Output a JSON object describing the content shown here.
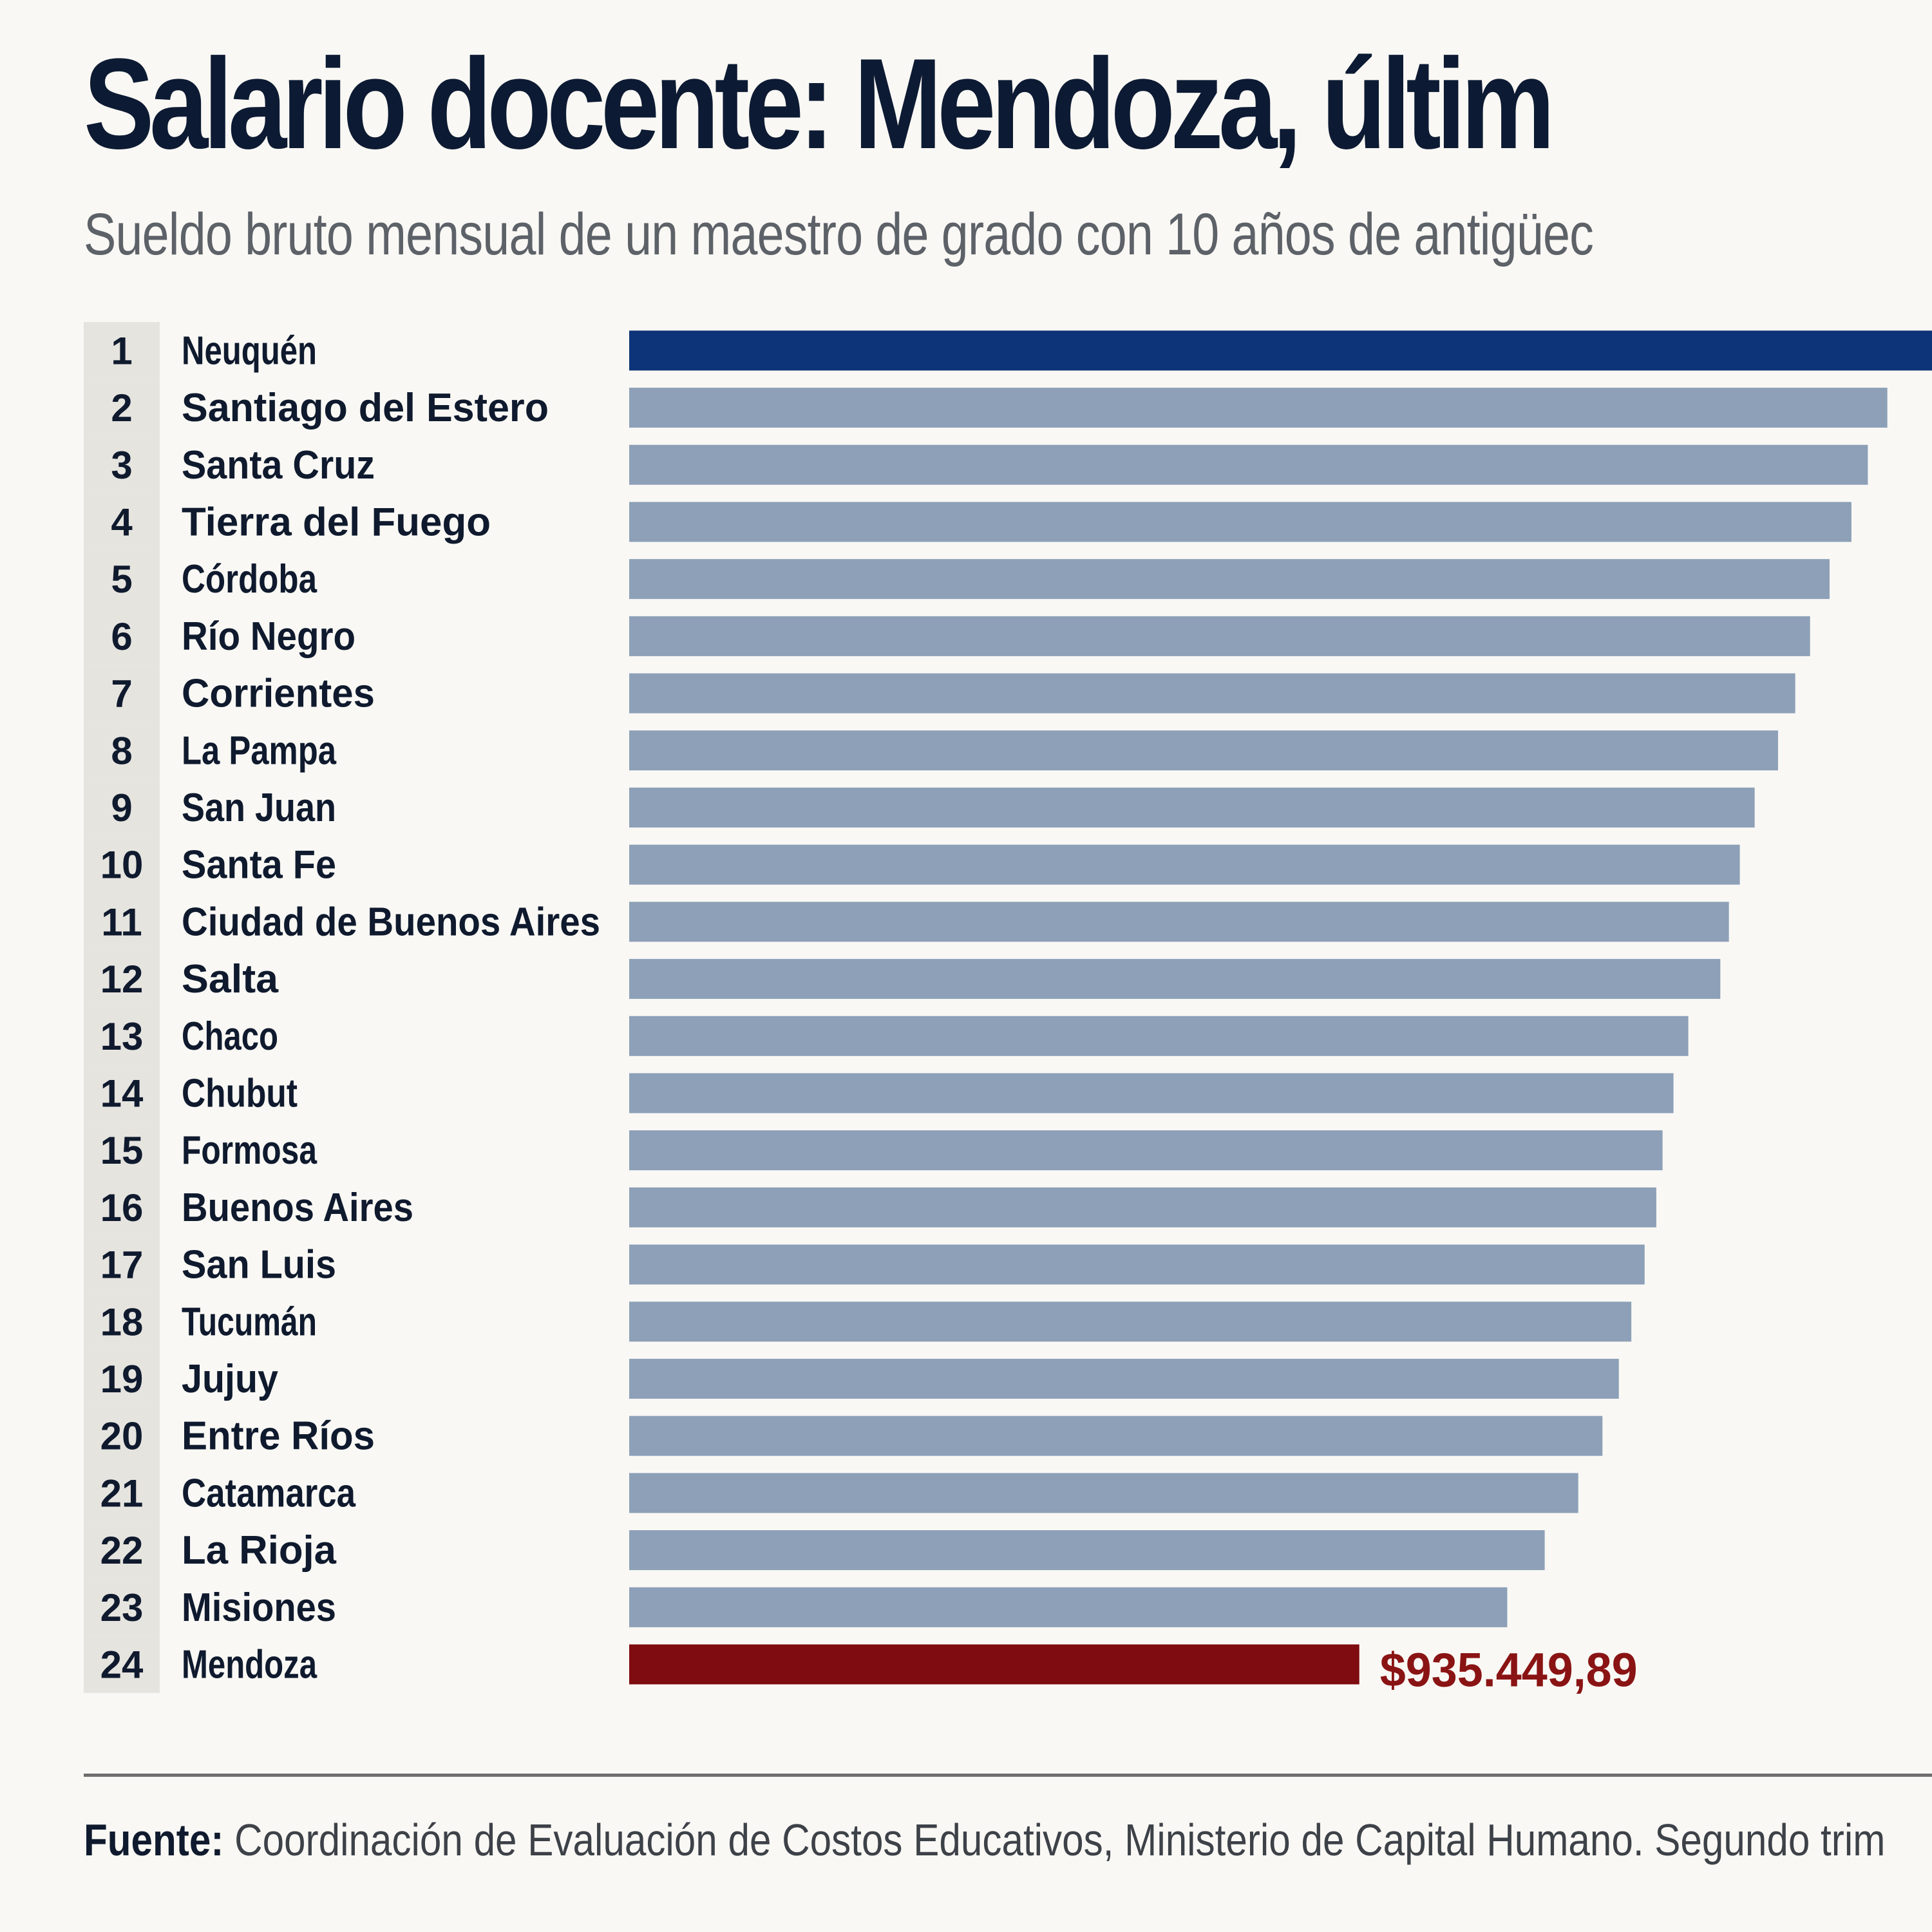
{
  "header": {
    "title": "Salario docente: Mendoza, últim",
    "subtitle": "Sueldo bruto mensual de un maestro de grado con 10 años de antigüec"
  },
  "colors": {
    "top_bar": "#0d3478",
    "default_bar": "#8da0b8",
    "highlight_bar": "#7e0c10",
    "highlight_label": "#8a1414",
    "rank_cell": "#e6e4df"
  },
  "chart_data": {
    "type": "bar",
    "orientation": "horizontal",
    "title": "Salario docente: Mendoza, últim",
    "subtitle": "Sueldo bruto mensual de un maestro de grado con 10 años de antigüec",
    "ranks": [
      "1",
      "2",
      "3",
      "4",
      "5",
      "6",
      "7",
      "8",
      "9",
      "10",
      "11",
      "12",
      "13",
      "14",
      "15",
      "16",
      "17",
      "18",
      "19",
      "20",
      "21",
      "22",
      "23",
      "24"
    ],
    "categories": [
      "Neuquén",
      "Santiago del Estero",
      "Santa Cruz",
      "Tierra del Fuego",
      "Córdoba",
      "Río Negro",
      "Corrientes",
      "La Pampa",
      "San Juan",
      "Santa Fe",
      "Ciudad de Buenos Aires",
      "Salta",
      "Chaco",
      "Chubut",
      "Formosa",
      "Buenos Aires",
      "San Luis",
      "Tucumán",
      "Jujuy",
      "Entre Ríos",
      "Catamarca",
      "La Rioja",
      "Misiones",
      "Mendoza"
    ],
    "values": [
      1675000,
      1612000,
      1587000,
      1566000,
      1538000,
      1513000,
      1494000,
      1472000,
      1442000,
      1423000,
      1409000,
      1398000,
      1357000,
      1338000,
      1324000,
      1316000,
      1301000,
      1284000,
      1268000,
      1247000,
      1216000,
      1173000,
      1125000,
      935449.89
    ],
    "highlight_index": 23,
    "top_index": 0,
    "value_labels": [
      "",
      "",
      "",
      "",
      "",
      "",
      "",
      "",
      "",
      "",
      "",
      "",
      "",
      "",
      "",
      "",
      "",
      "",
      "",
      "",
      "",
      "",
      "",
      "$935.449,89"
    ],
    "xlim": [
      0,
      1675000
    ],
    "legend": "none",
    "grid": false
  },
  "footer": {
    "source_label": "Fuente:",
    "source_text": " Coordinación de Evaluación de Costos Educativos, Ministerio de Capital Humano. Segundo trim"
  }
}
